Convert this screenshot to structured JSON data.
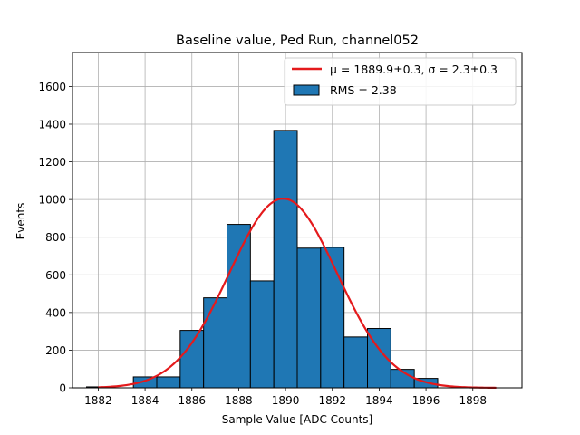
{
  "chart_data": {
    "type": "bar",
    "title": "Baseline value, Ped Run, channel052",
    "xlabel": "Sample Value [ADC Counts]",
    "ylabel": "Events",
    "xlim": [
      1880.9,
      1900.1
    ],
    "ylim": [
      0,
      1780
    ],
    "grid": true,
    "legend_placement": "top-right",
    "bar_color": "#1f77b4",
    "fit_color": "#e41a1c",
    "x_ticks": [
      1882,
      1884,
      1886,
      1888,
      1890,
      1892,
      1894,
      1896,
      1898
    ],
    "y_ticks": [
      0,
      200,
      400,
      600,
      800,
      1000,
      1200,
      1400,
      1600
    ],
    "bins": [
      {
        "x0": 1881.5,
        "x1": 1882.5,
        "count": 5
      },
      {
        "x0": 1882.5,
        "x1": 1883.5,
        "count": 0
      },
      {
        "x0": 1883.5,
        "x1": 1884.5,
        "count": 58
      },
      {
        "x0": 1884.5,
        "x1": 1885.5,
        "count": 58
      },
      {
        "x0": 1885.5,
        "x1": 1886.5,
        "count": 305
      },
      {
        "x0": 1886.5,
        "x1": 1887.5,
        "count": 478
      },
      {
        "x0": 1887.5,
        "x1": 1888.5,
        "count": 868
      },
      {
        "x0": 1888.5,
        "x1": 1889.5,
        "count": 568
      },
      {
        "x0": 1889.5,
        "x1": 1890.5,
        "count": 1367
      },
      {
        "x0": 1890.5,
        "x1": 1891.5,
        "count": 742
      },
      {
        "x0": 1891.5,
        "x1": 1892.5,
        "count": 746
      },
      {
        "x0": 1892.5,
        "x1": 1893.5,
        "count": 270
      },
      {
        "x0": 1893.5,
        "x1": 1894.5,
        "count": 315
      },
      {
        "x0": 1894.5,
        "x1": 1895.5,
        "count": 98
      },
      {
        "x0": 1895.5,
        "x1": 1896.5,
        "count": 50
      }
    ],
    "fit": {
      "mu": 1889.9,
      "sigma": 2.3,
      "amplitude": 1005,
      "x_range": [
        1882,
        1899
      ]
    },
    "legend": [
      {
        "kind": "line",
        "label": "μ = 1889.9±0.3, σ = 2.3±0.3"
      },
      {
        "kind": "patch",
        "label": "RMS = 2.38"
      }
    ]
  }
}
